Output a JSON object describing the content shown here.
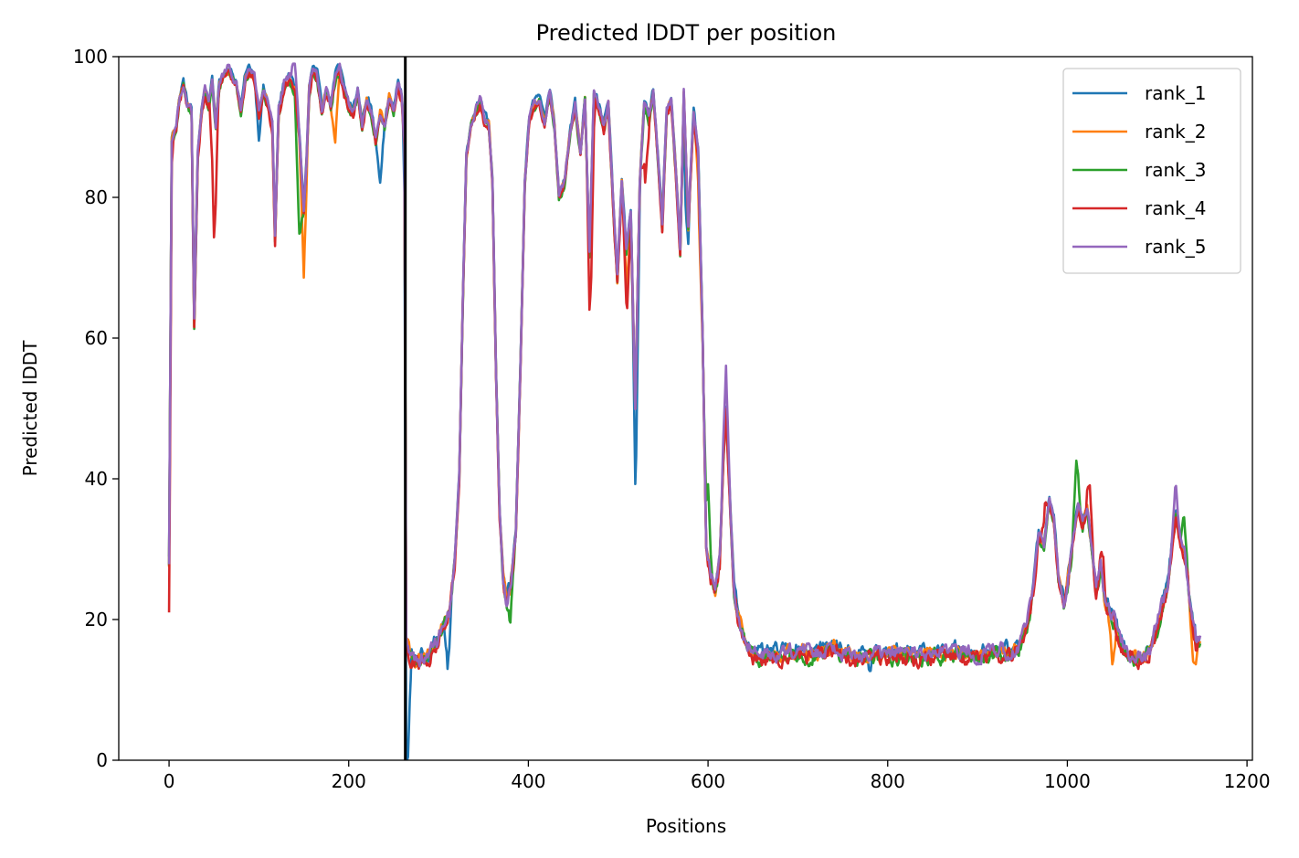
{
  "chart_data": {
    "type": "line",
    "title": "Predicted lDDT per position",
    "xlabel": "Positions",
    "ylabel": "Predicted lDDT",
    "xlim": [
      -56,
      1206
    ],
    "ylim": [
      0,
      100
    ],
    "xticks": [
      0,
      200,
      400,
      600,
      800,
      1000,
      1200
    ],
    "yticks": [
      0,
      20,
      40,
      60,
      80,
      100
    ],
    "grid": false,
    "legend_position": "top-right",
    "vertical_line": {
      "x": 263,
      "color": "#000000"
    },
    "series": [
      {
        "name": "rank_1",
        "color": "#1f77b4",
        "offset": 0.6,
        "dips": [
          [
            100,
            4
          ],
          [
            235,
            10
          ],
          [
            265,
            20
          ],
          [
            310,
            8
          ],
          [
            520,
            14
          ],
          [
            575,
            9
          ],
          [
            780,
            3
          ]
        ]
      },
      {
        "name": "rank_2",
        "color": "#ff7f0e",
        "offset": 0.1,
        "dips": [
          [
            150,
            10
          ],
          [
            185,
            9
          ],
          [
            510,
            6
          ],
          [
            590,
            5
          ],
          [
            1050,
            7
          ],
          [
            1140,
            6
          ]
        ]
      },
      {
        "name": "rank_3",
        "color": "#2ca02c",
        "offset": -0.3,
        "dips": [
          [
            145,
            14
          ],
          [
            380,
            4
          ],
          [
            600,
            -10
          ],
          [
            1010,
            -8
          ],
          [
            1130,
            -6
          ]
        ]
      },
      {
        "name": "rank_4",
        "color": "#d62728",
        "offset": -0.4,
        "dips": [
          [
            0,
            8
          ],
          [
            50,
            18
          ],
          [
            470,
            12
          ],
          [
            510,
            8
          ],
          [
            530,
            10
          ],
          [
            975,
            -6
          ],
          [
            1025,
            -7
          ],
          [
            1040,
            -4
          ]
        ]
      },
      {
        "name": "rank_5",
        "color": "#9467bd",
        "offset": 0.3,
        "dips": [
          [
            140,
            -5
          ],
          [
            620,
            -6
          ],
          [
            700,
            -1
          ],
          [
            1120,
            -4
          ]
        ]
      }
    ],
    "base_profile": [
      [
        0,
        28
      ],
      [
        3,
        88
      ],
      [
        8,
        90
      ],
      [
        12,
        94
      ],
      [
        16,
        96
      ],
      [
        20,
        93
      ],
      [
        25,
        92
      ],
      [
        28,
        62
      ],
      [
        32,
        86
      ],
      [
        36,
        92
      ],
      [
        40,
        95
      ],
      [
        44,
        93
      ],
      [
        48,
        96
      ],
      [
        52,
        90
      ],
      [
        56,
        96
      ],
      [
        60,
        97
      ],
      [
        65,
        98
      ],
      [
        70,
        97
      ],
      [
        75,
        96
      ],
      [
        80,
        92
      ],
      [
        85,
        97
      ],
      [
        90,
        98
      ],
      [
        95,
        97
      ],
      [
        100,
        92
      ],
      [
        105,
        95
      ],
      [
        110,
        93
      ],
      [
        115,
        90
      ],
      [
        118,
        74
      ],
      [
        122,
        92
      ],
      [
        128,
        96
      ],
      [
        134,
        97
      ],
      [
        140,
        95
      ],
      [
        145,
        89
      ],
      [
        150,
        78
      ],
      [
        153,
        85
      ],
      [
        156,
        95
      ],
      [
        160,
        98
      ],
      [
        165,
        97
      ],
      [
        170,
        92
      ],
      [
        175,
        95
      ],
      [
        180,
        93
      ],
      [
        185,
        97
      ],
      [
        190,
        98
      ],
      [
        195,
        95
      ],
      [
        200,
        93
      ],
      [
        205,
        92
      ],
      [
        210,
        95
      ],
      [
        215,
        90
      ],
      [
        220,
        94
      ],
      [
        225,
        92
      ],
      [
        230,
        88
      ],
      [
        235,
        92
      ],
      [
        240,
        90
      ],
      [
        245,
        94
      ],
      [
        250,
        92
      ],
      [
        255,
        96
      ],
      [
        259,
        94
      ],
      [
        262,
        88
      ],
      [
        264,
        17
      ],
      [
        270,
        14.5
      ],
      [
        280,
        14
      ],
      [
        290,
        15
      ],
      [
        300,
        17
      ],
      [
        305,
        19
      ],
      [
        312,
        21
      ],
      [
        318,
        28
      ],
      [
        323,
        40
      ],
      [
        327,
        65
      ],
      [
        331,
        86
      ],
      [
        336,
        90
      ],
      [
        341,
        92
      ],
      [
        346,
        94
      ],
      [
        351,
        91
      ],
      [
        356,
        90
      ],
      [
        360,
        82
      ],
      [
        364,
        55
      ],
      [
        368,
        35
      ],
      [
        372,
        26
      ],
      [
        376,
        22
      ],
      [
        380,
        24
      ],
      [
        386,
        32
      ],
      [
        391,
        55
      ],
      [
        396,
        82
      ],
      [
        401,
        91
      ],
      [
        406,
        93
      ],
      [
        412,
        94
      ],
      [
        418,
        90
      ],
      [
        424,
        95
      ],
      [
        429,
        90
      ],
      [
        434,
        80
      ],
      [
        440,
        82
      ],
      [
        446,
        89
      ],
      [
        452,
        93
      ],
      [
        458,
        86
      ],
      [
        463,
        94
      ],
      [
        468,
        72
      ],
      [
        473,
        95
      ],
      [
        478,
        93
      ],
      [
        484,
        90
      ],
      [
        489,
        93
      ],
      [
        494,
        80
      ],
      [
        499,
        68
      ],
      [
        504,
        82
      ],
      [
        509,
        72
      ],
      [
        514,
        78
      ],
      [
        519,
        50
      ],
      [
        524,
        82
      ],
      [
        529,
        93
      ],
      [
        534,
        91
      ],
      [
        539,
        95
      ],
      [
        544,
        86
      ],
      [
        549,
        76
      ],
      [
        554,
        92
      ],
      [
        559,
        94
      ],
      [
        564,
        84
      ],
      [
        569,
        72
      ],
      [
        573,
        95
      ],
      [
        578,
        76
      ],
      [
        584,
        92
      ],
      [
        589,
        86
      ],
      [
        594,
        60
      ],
      [
        598,
        30
      ],
      [
        603,
        26
      ],
      [
        608,
        24
      ],
      [
        613,
        28
      ],
      [
        617,
        43
      ],
      [
        620,
        50
      ],
      [
        624,
        38
      ],
      [
        629,
        24
      ],
      [
        634,
        20
      ],
      [
        640,
        17
      ],
      [
        650,
        15
      ],
      [
        660,
        14.5
      ],
      [
        680,
        15
      ],
      [
        700,
        15.5
      ],
      [
        720,
        15
      ],
      [
        740,
        16
      ],
      [
        760,
        14.5
      ],
      [
        780,
        15
      ],
      [
        800,
        14.8
      ],
      [
        820,
        15.2
      ],
      [
        840,
        14.6
      ],
      [
        860,
        15
      ],
      [
        880,
        15.3
      ],
      [
        900,
        14.8
      ],
      [
        920,
        15.5
      ],
      [
        935,
        15
      ],
      [
        945,
        16
      ],
      [
        955,
        19
      ],
      [
        962,
        24
      ],
      [
        968,
        32
      ],
      [
        974,
        30
      ],
      [
        980,
        37
      ],
      [
        985,
        34
      ],
      [
        990,
        26
      ],
      [
        996,
        22
      ],
      [
        1001,
        26
      ],
      [
        1007,
        32
      ],
      [
        1012,
        36
      ],
      [
        1017,
        33
      ],
      [
        1022,
        36
      ],
      [
        1027,
        30
      ],
      [
        1032,
        24
      ],
      [
        1037,
        28
      ],
      [
        1042,
        22
      ],
      [
        1047,
        21
      ],
      [
        1052,
        20
      ],
      [
        1058,
        17
      ],
      [
        1065,
        15.5
      ],
      [
        1072,
        14.8
      ],
      [
        1079,
        14.2
      ],
      [
        1086,
        14.5
      ],
      [
        1093,
        16
      ],
      [
        1100,
        19
      ],
      [
        1106,
        22
      ],
      [
        1111,
        24
      ],
      [
        1116,
        30
      ],
      [
        1121,
        35
      ],
      [
        1126,
        31
      ],
      [
        1131,
        29
      ],
      [
        1137,
        22
      ],
      [
        1143,
        17
      ],
      [
        1148,
        17
      ]
    ]
  }
}
